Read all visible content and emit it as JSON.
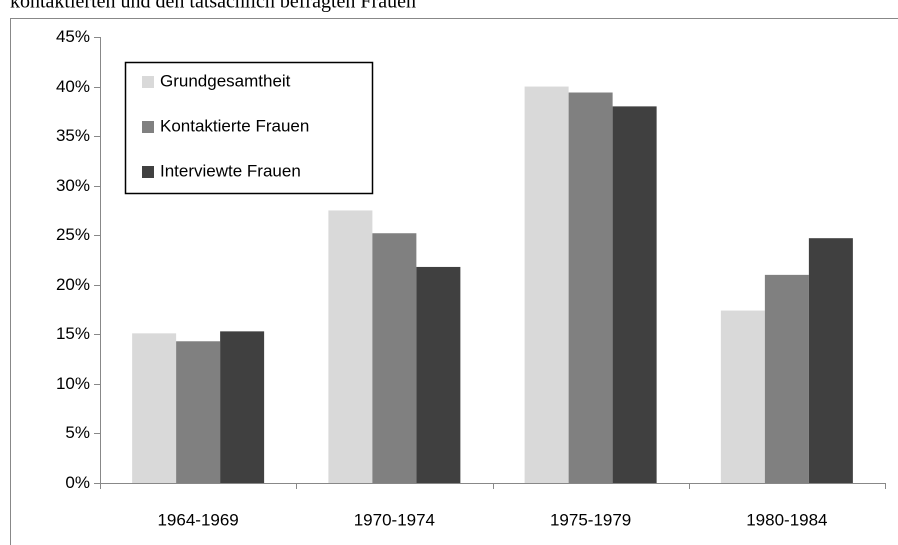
{
  "chart_data": {
    "type": "bar",
    "title": "kontaktierten und den tatsächlich befragten Frauen",
    "categories": [
      "1964-1969",
      "1970-1974",
      "1975-1979",
      "1980-1984"
    ],
    "series": [
      {
        "name": "Grundgesamtheit",
        "color": "#d9d9d9",
        "values": [
          15.1,
          27.5,
          40.0,
          17.4
        ]
      },
      {
        "name": "Kontaktierte Frauen",
        "color": "#808080",
        "values": [
          14.3,
          25.2,
          39.4,
          21.0
        ]
      },
      {
        "name": "Interviewte Frauen",
        "color": "#404040",
        "values": [
          15.3,
          21.8,
          38.0,
          24.7
        ]
      }
    ],
    "ylim": [
      0,
      45
    ],
    "yticks": [
      {
        "value": 0,
        "label": "0%"
      },
      {
        "value": 5,
        "label": "5%"
      },
      {
        "value": 10,
        "label": "10%"
      },
      {
        "value": 15,
        "label": "15%"
      },
      {
        "value": 20,
        "label": "20%"
      },
      {
        "value": 25,
        "label": "25%"
      },
      {
        "value": 30,
        "label": "30%"
      },
      {
        "value": 35,
        "label": "35%"
      },
      {
        "value": 40,
        "label": "40%"
      },
      {
        "value": 45,
        "label": "45%"
      }
    ],
    "legend": "upper-left"
  }
}
